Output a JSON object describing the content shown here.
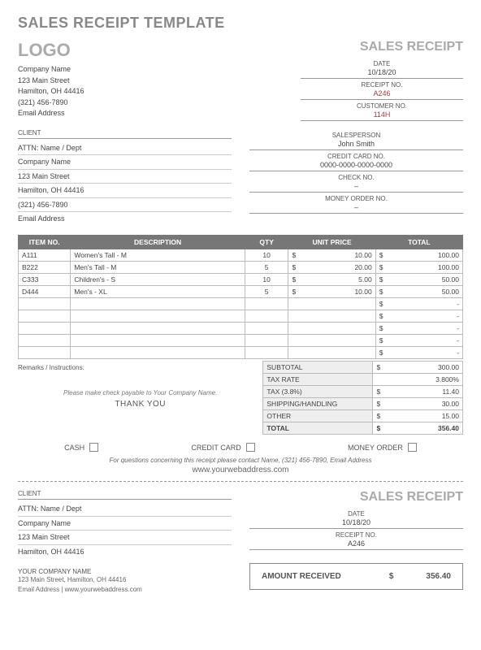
{
  "page_title": "SALES RECEIPT TEMPLATE",
  "logo_text": "LOGO",
  "sales_receipt_label": "SALES RECEIPT",
  "company": {
    "name": "Company Name",
    "street": "123 Main Street",
    "city": "Hamilton, OH  44416",
    "phone": "(321) 456-7890",
    "email": "Email Address"
  },
  "header_fields": {
    "date_label": "DATE",
    "date_value": "10/18/20",
    "receipt_label": "RECEIPT NO.",
    "receipt_value": "A246",
    "customer_label": "CUSTOMER NO.",
    "customer_value": "114H"
  },
  "client_label": "CLIENT",
  "client": {
    "attn": "ATTN: Name / Dept",
    "name": "Company Name",
    "street": "123 Main Street",
    "city": "Hamilton, OH  44416",
    "phone": "(321) 456-7890",
    "email": "Email Address"
  },
  "sales_fields": {
    "salesperson_label": "SALESPERSON",
    "salesperson_value": "John Smith",
    "cc_label": "CREDIT CARD NO.",
    "cc_value": "0000-0000-0000-0000",
    "check_label": "CHECK NO.",
    "check_value": "–",
    "mo_label": "MONEY ORDER NO.",
    "mo_value": "–"
  },
  "items_header": {
    "item": "ITEM NO.",
    "desc": "DESCRIPTION",
    "qty": "QTY",
    "unit": "UNIT PRICE",
    "total": "TOTAL"
  },
  "items": [
    {
      "no": "A111",
      "desc": "Women's Tall - M",
      "qty": "10",
      "unit": "10.00",
      "total": "100.00"
    },
    {
      "no": "B222",
      "desc": "Men's Tall - M",
      "qty": "5",
      "unit": "20.00",
      "total": "100.00"
    },
    {
      "no": "C333",
      "desc": "Children's - S",
      "qty": "10",
      "unit": "5.00",
      "total": "50.00"
    },
    {
      "no": "D444",
      "desc": "Men's - XL",
      "qty": "5",
      "unit": "10.00",
      "total": "50.00"
    }
  ],
  "empty_total": "-",
  "remarks_label": "Remarks / Instructions:",
  "payable_text": "Please make check payable to Your Company Name.",
  "thanks_text": "THANK YOU",
  "totals": {
    "subtotal_label": "SUBTOTAL",
    "subtotal": "300.00",
    "taxrate_label": "TAX RATE",
    "taxrate": "3.800%",
    "tax_label": "TAX (3.8%)",
    "tax": "11.40",
    "ship_label": "SHIPPING/HANDLING",
    "ship": "30.00",
    "other_label": "OTHER",
    "other": "15.00",
    "total_label": "TOTAL",
    "total": "356.40"
  },
  "pay": {
    "cash": "CASH",
    "cc": "CREDIT CARD",
    "mo": "MONEY ORDER"
  },
  "contact_line": "For questions concerning this receipt please contact Name, (321) 456-7890, Email Address",
  "web": "www.yourwebaddress.com",
  "stub_client_label": "CLIENT",
  "stub_client": {
    "attn": "ATTN: Name / Dept",
    "name": "Company Name",
    "street": "123 Main Street",
    "city": "Hamilton, OH  44416"
  },
  "stub_right": {
    "date_label": "DATE",
    "date_value": "10/18/20",
    "receipt_label": "RECEIPT NO.",
    "receipt_value": "A246"
  },
  "your_company_label": "YOUR COMPANY NAME",
  "your_company": {
    "line1": "123 Main Street, Hamilton, OH  44416",
    "line2": "Email Address | www.yourwebaddress.com"
  },
  "amount_label": "AMOUNT RECEIVED",
  "amount_sym": "$",
  "amount_value": "356.40"
}
